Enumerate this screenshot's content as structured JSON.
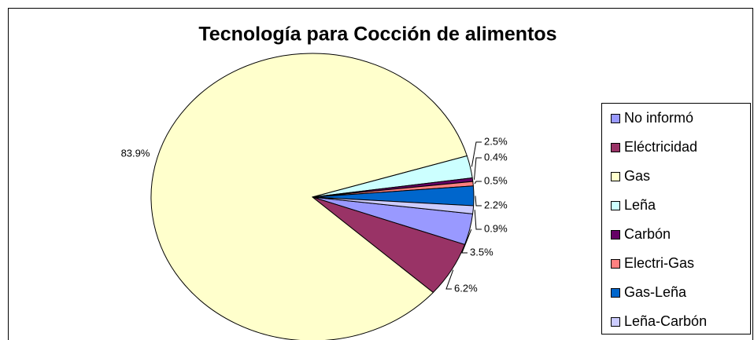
{
  "chart_data": {
    "type": "pie",
    "title": "Tecnología para Cocción de alimentos",
    "categories": [
      "No informó",
      "Eléctricidad",
      "Gas",
      "Leña",
      "Carbón",
      "Electri-Gas",
      "Gas-Leña",
      "Leña-Carbón"
    ],
    "values": [
      3.5,
      6.2,
      83.9,
      2.5,
      0.4,
      0.5,
      2.2,
      0.9
    ],
    "value_labels": [
      "3.5%",
      "6.2%",
      "83.9%",
      "2.5%",
      "0.4%",
      "0.5%",
      "2.2%",
      "0.9%"
    ],
    "colors": [
      "#9999ff",
      "#993366",
      "#ffffcc",
      "#ccffff",
      "#660066",
      "#ff8080",
      "#0066cc",
      "#ccccff"
    ],
    "legend": "right"
  }
}
